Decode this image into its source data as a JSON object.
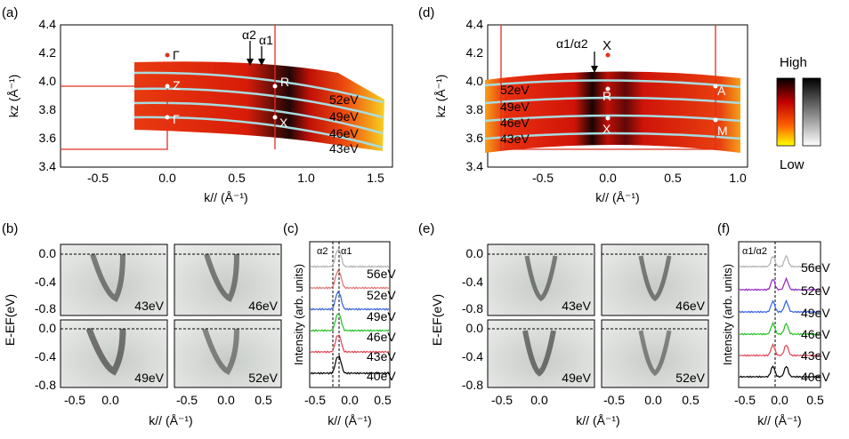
{
  "figure": {
    "panels": {
      "a": {
        "label": "(a)",
        "xlabel": "k// (Å⁻¹)",
        "ylabel": "kz (Å⁻¹)",
        "xlim": [
          -0.8,
          1.6
        ],
        "ylim": [
          3.4,
          4.4
        ],
        "xticks": [
          "-0.5",
          "0.0",
          "0.5",
          "1.0",
          "1.5"
        ],
        "yticks": [
          "3.4",
          "3.6",
          "3.8",
          "4.0",
          "4.2",
          "4.4"
        ],
        "points": [
          "Γ",
          "Z",
          "Γ",
          "R",
          "X"
        ],
        "markers": [
          "α2",
          "α1"
        ],
        "energies": [
          "52eV",
          "49eV",
          "46eV",
          "43eV"
        ]
      },
      "d": {
        "label": "(d)",
        "xlabel": "k// (Å⁻¹)",
        "ylabel": "kz (Å⁻¹)",
        "xlim": [
          -0.95,
          1.05
        ],
        "ylim": [
          3.4,
          4.4
        ],
        "xticks": [
          "-0.5",
          "0.0",
          "0.5",
          "1.0"
        ],
        "yticks": [
          "3.4",
          "3.6",
          "3.8",
          "4.0",
          "4.2",
          "4.4"
        ],
        "points": [
          "X",
          "R",
          "X",
          "A",
          "M"
        ],
        "marker": "α1/α2",
        "energies": [
          "52eV",
          "49eV",
          "46eV",
          "43eV"
        ]
      },
      "b": {
        "label": "(b)",
        "ylabel": "E-EF(eV)",
        "xlabel": "k// (Å⁻¹)",
        "yticks": [
          "0.0",
          "-0.4",
          "-0.8"
        ],
        "xticks": [
          "-0.5",
          "0.0",
          "0.5"
        ],
        "energies": [
          "43eV",
          "46eV",
          "49eV",
          "52eV"
        ]
      },
      "e": {
        "label": "(e)",
        "ylabel": "E-EF(eV)",
        "xlabel": "k// (Å⁻¹)",
        "yticks": [
          "0.0",
          "-0.4",
          "-0.8"
        ],
        "xticks": [
          "-0.5",
          "0.0",
          "0.5"
        ],
        "energies": [
          "43eV",
          "46eV",
          "49eV",
          "52eV"
        ]
      },
      "c": {
        "label": "(c)",
        "ylabel": "Intensity (arb. units)",
        "xlabel": "k// (Å⁻¹)",
        "xticks": [
          "-0.5",
          "0.0",
          "0.5"
        ],
        "markers": [
          "α2",
          "α1"
        ],
        "energies": [
          "56eV",
          "52eV",
          "49eV",
          "46eV",
          "43eV",
          "40eV"
        ]
      },
      "f": {
        "label": "(f)",
        "ylabel": "Intensity (arb. units)",
        "xlabel": "k// (Å⁻¹)",
        "xticks": [
          "-0.5",
          "0.0",
          "0.5"
        ],
        "marker": "α1/α2",
        "energies": [
          "56eV",
          "52eV",
          "49eV",
          "46eV",
          "43eV",
          "40eV"
        ]
      }
    },
    "legend": {
      "high": "High",
      "low": "Low"
    }
  },
  "chart_data": [
    {
      "panel": "a",
      "type": "heatmap",
      "title": "",
      "xlabel": "k// (Å⁻¹)",
      "ylabel": "kz (Å⁻¹)",
      "xlim": [
        -0.8,
        1.6
      ],
      "ylim": [
        3.4,
        4.4
      ],
      "high_symmetry_points": [
        {
          "name": "Γ",
          "k_par": 0.0,
          "kz": 4.19
        },
        {
          "name": "Z",
          "k_par": 0.0,
          "kz": 3.97
        },
        {
          "name": "Γ",
          "k_par": 0.0,
          "kz": 3.73
        },
        {
          "name": "R",
          "k_par": 0.78,
          "kz": 3.97
        },
        {
          "name": "X",
          "k_par": 0.78,
          "kz": 3.73
        }
      ],
      "markers": [
        {
          "name": "α2",
          "k_par": 0.6
        },
        {
          "name": "α1",
          "k_par": 0.68
        }
      ],
      "photon_energy_cuts": [
        "52eV",
        "49eV",
        "46eV",
        "43eV"
      ]
    },
    {
      "panel": "d",
      "type": "heatmap",
      "title": "",
      "xlabel": "k// (Å⁻¹)",
      "ylabel": "kz (Å⁻¹)",
      "xlim": [
        -0.95,
        1.05
      ],
      "ylim": [
        3.4,
        4.4
      ],
      "high_symmetry_points": [
        {
          "name": "X",
          "k_par": 0.0,
          "kz": 4.19
        },
        {
          "name": "R",
          "k_par": 0.0,
          "kz": 3.95
        },
        {
          "name": "X",
          "k_par": 0.0,
          "kz": 3.72
        },
        {
          "name": "A",
          "k_par": 0.8,
          "kz": 3.97
        },
        {
          "name": "M",
          "k_par": 0.8,
          "kz": 3.7
        }
      ],
      "markers": [
        {
          "name": "α1/α2",
          "k_par": -0.1
        }
      ],
      "photon_energy_cuts": [
        "52eV",
        "49eV",
        "46eV",
        "43eV"
      ]
    },
    {
      "panel": "c",
      "type": "line",
      "title": "",
      "xlabel": "k// (Å⁻¹)",
      "ylabel": "Intensity (arb. units)",
      "xlim": [
        -0.6,
        0.6
      ],
      "series": [
        {
          "name": "56eV",
          "color": "#b0b0b0"
        },
        {
          "name": "52eV",
          "color": "#e07070"
        },
        {
          "name": "49eV",
          "color": "#3060e0"
        },
        {
          "name": "46eV",
          "color": "#20c020"
        },
        {
          "name": "43eV",
          "color": "#e04050"
        },
        {
          "name": "40eV",
          "color": "#000000"
        }
      ],
      "peaks_k": [
        -0.2,
        -0.15
      ]
    },
    {
      "panel": "f",
      "type": "line",
      "title": "",
      "xlabel": "k// (Å⁻¹)",
      "ylabel": "Intensity (arb. units)",
      "xlim": [
        -0.6,
        0.6
      ],
      "series": [
        {
          "name": "56eV",
          "color": "#b0b0b0"
        },
        {
          "name": "52eV",
          "color": "#9020c0"
        },
        {
          "name": "49eV",
          "color": "#3060e0"
        },
        {
          "name": "46eV",
          "color": "#20c020"
        },
        {
          "name": "43eV",
          "color": "#e04050"
        },
        {
          "name": "40eV",
          "color": "#000000"
        }
      ],
      "peaks_k": [
        -0.1,
        0.1
      ]
    }
  ],
  "colors": {
    "cut_line": "#a8dce0",
    "frame": "#e03020",
    "point": "#e03020"
  }
}
